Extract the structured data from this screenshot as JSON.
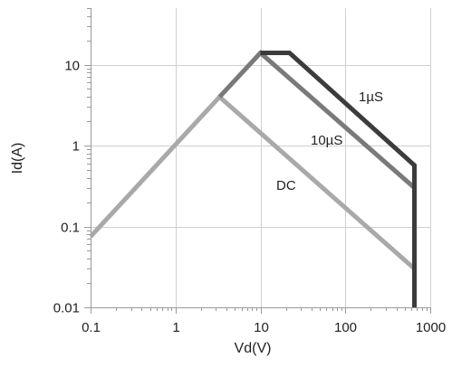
{
  "chart_data": {
    "type": "line",
    "title": "",
    "xlabel": "Vd(V)",
    "ylabel": "Id(A)",
    "xscale": "log",
    "yscale": "log",
    "xlim": [
      0.1,
      1000
    ],
    "ylim": [
      0.01,
      50
    ],
    "x_ticks": [
      0.1,
      1,
      10,
      100,
      1000
    ],
    "x_tick_labels": [
      "0.1",
      "1",
      "10",
      "100",
      "1000"
    ],
    "y_ticks": [
      0.01,
      0.1,
      1,
      10
    ],
    "y_tick_labels": [
      "0.01",
      "0.1",
      "1",
      "10"
    ],
    "grid": true,
    "legend": "inline labels",
    "series": [
      {
        "name": "1µS",
        "color": "#3c3c3c",
        "x": [
          10,
          22,
          650,
          650
        ],
        "y": [
          14,
          14,
          0.57,
          0.01
        ]
      },
      {
        "name": "10µS",
        "color": "#7a7a7a",
        "x": [
          3.3,
          10,
          650,
          650
        ],
        "y": [
          4,
          14,
          0.3,
          0.01
        ]
      },
      {
        "name": "DC",
        "color": "#a9a9a9",
        "x": [
          0.1,
          3.3,
          650,
          650
        ],
        "y": [
          0.075,
          4,
          0.03,
          0.01
        ]
      }
    ]
  }
}
